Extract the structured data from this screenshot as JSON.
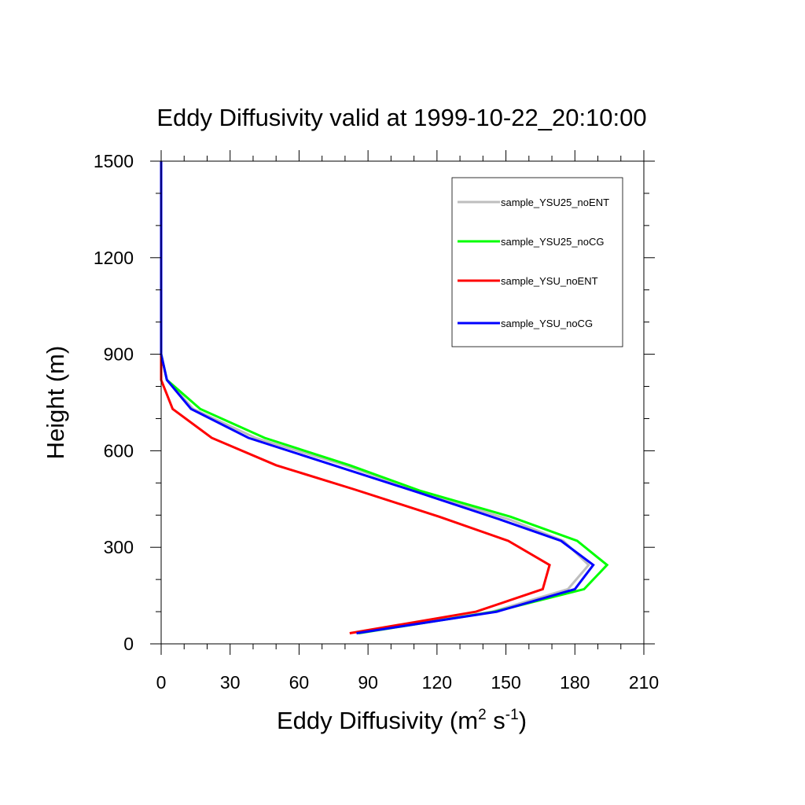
{
  "chart_data": {
    "type": "line",
    "title": "Eddy Diffusivity valid at 1999-10-22_20:10:00",
    "xlabel": {
      "base": "Eddy Diffusivity (m",
      "sup1": "2",
      "mid": " s",
      "sup2": "-1",
      "end": ")"
    },
    "ylabel": "Height (m)",
    "xlim": [
      0,
      210
    ],
    "ylim": [
      0,
      1500
    ],
    "x_ticks": [
      0,
      30,
      60,
      90,
      120,
      150,
      180,
      210
    ],
    "y_ticks": [
      0,
      300,
      600,
      900,
      1200,
      1500
    ],
    "x_tick_labels": [
      "0",
      "30",
      "60",
      "90",
      "120",
      "150",
      "180",
      "210"
    ],
    "y_tick_labels": [
      "0",
      "300",
      "600",
      "900",
      "1200",
      "1500"
    ],
    "grid": false,
    "legend_position": "top-right",
    "series": [
      {
        "name": "sample_YSU25_noENT",
        "color": "#bebebe",
        "points": [
          [
            85,
            33
          ],
          [
            144,
            100
          ],
          [
            177,
            170
          ],
          [
            186,
            245
          ],
          [
            175,
            320
          ],
          [
            152,
            385
          ],
          [
            112,
            475
          ],
          [
            80,
            555
          ],
          [
            41,
            640
          ],
          [
            14,
            730
          ],
          [
            2.5,
            820
          ],
          [
            0,
            900
          ],
          [
            0,
            1500
          ]
        ]
      },
      {
        "name": "sample_YSU25_noCG",
        "color": "#00ff00",
        "points": [
          [
            86,
            33
          ],
          [
            145,
            100
          ],
          [
            184,
            170
          ],
          [
            194,
            245
          ],
          [
            181,
            320
          ],
          [
            152,
            395
          ],
          [
            113,
            475
          ],
          [
            82,
            555
          ],
          [
            45,
            640
          ],
          [
            17,
            730
          ],
          [
            2.5,
            820
          ],
          [
            0,
            900
          ],
          [
            0,
            1500
          ]
        ]
      },
      {
        "name": "sample_YSU_noENT",
        "color": "#ff0000",
        "points": [
          [
            82,
            33
          ],
          [
            137,
            100
          ],
          [
            166,
            170
          ],
          [
            169,
            245
          ],
          [
            151,
            320
          ],
          [
            121,
            395
          ],
          [
            84,
            480
          ],
          [
            50,
            555
          ],
          [
            22,
            640
          ],
          [
            5,
            730
          ],
          [
            0,
            820
          ],
          [
            0,
            900
          ],
          [
            0,
            1500
          ]
        ]
      },
      {
        "name": "sample_YSU_noCG",
        "color": "#0000ff",
        "points": [
          [
            85,
            33
          ],
          [
            146,
            100
          ],
          [
            180,
            170
          ],
          [
            188,
            245
          ],
          [
            174,
            320
          ],
          [
            148,
            385
          ],
          [
            112,
            470
          ],
          [
            75,
            555
          ],
          [
            38,
            640
          ],
          [
            13,
            730
          ],
          [
            2.5,
            820
          ],
          [
            0,
            900
          ],
          [
            0,
            1500
          ]
        ]
      }
    ]
  }
}
